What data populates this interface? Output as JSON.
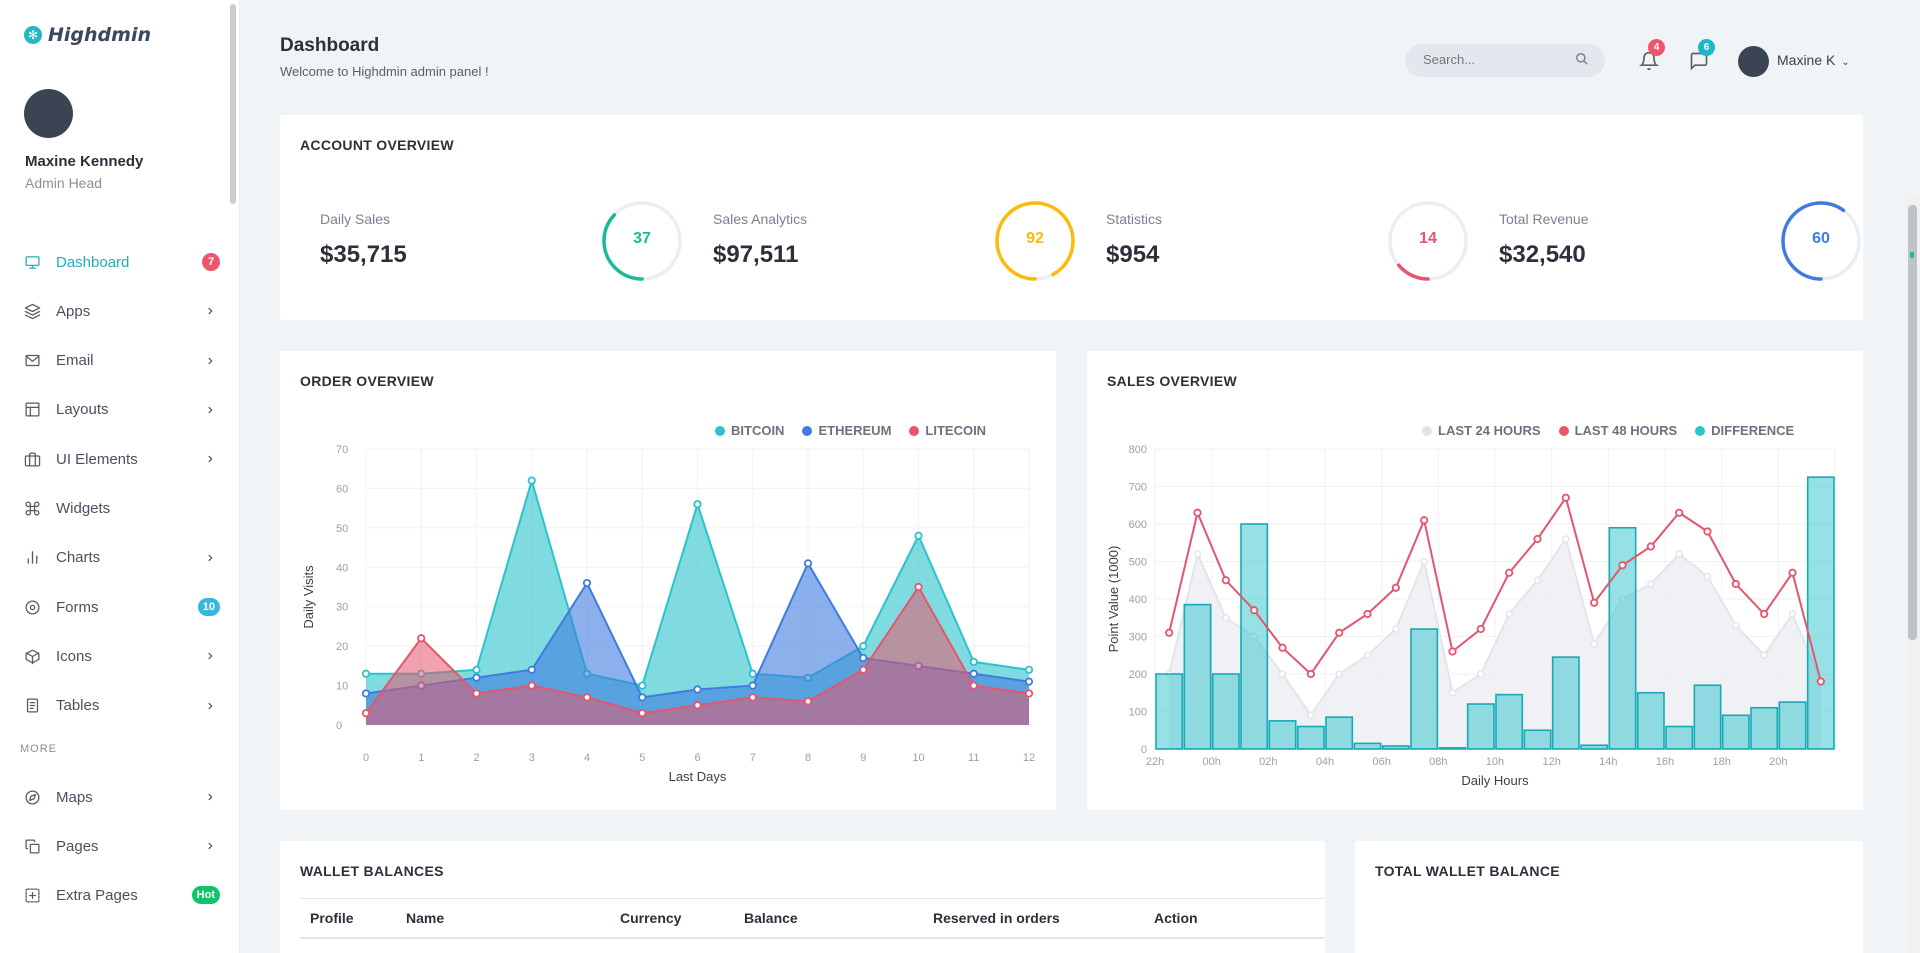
{
  "app": {
    "name": "Highdmin"
  },
  "user": {
    "name": "Maxine Kennedy",
    "role": "Admin Head",
    "short_name": "Maxine K"
  },
  "sidebar": {
    "items": [
      {
        "label": "Dashboard",
        "icon": "monitor-icon",
        "badge": "7",
        "badge_color": "#f1556c",
        "active": true
      },
      {
        "label": "Apps",
        "icon": "layers-icon"
      },
      {
        "label": "Email",
        "icon": "mail-icon"
      },
      {
        "label": "Layouts",
        "icon": "layout-icon"
      },
      {
        "label": "UI Elements",
        "icon": "briefcase-icon"
      },
      {
        "label": "Widgets",
        "icon": "command-icon"
      },
      {
        "label": "Charts",
        "icon": "bar-chart-icon"
      },
      {
        "label": "Forms",
        "icon": "disc-icon",
        "badge": "10",
        "badge_color": "#35b8e0"
      },
      {
        "label": "Icons",
        "icon": "box-icon"
      },
      {
        "label": "Tables",
        "icon": "clipboard-icon"
      }
    ],
    "section_more": "MORE",
    "more_items": [
      {
        "label": "Maps",
        "icon": "compass-icon"
      },
      {
        "label": "Pages",
        "icon": "copy-icon"
      },
      {
        "label": "Extra Pages",
        "icon": "plus-square-icon",
        "badge": "Hot",
        "badge_color": "#10c469"
      }
    ]
  },
  "header": {
    "title": "Dashboard",
    "subtitle": "Welcome to Highdmin admin panel !",
    "search_placeholder": "Search...",
    "notifications_count": "4",
    "messages_count": "6"
  },
  "account_overview": {
    "title": "ACCOUNT OVERVIEW",
    "stats": [
      {
        "label": "Daily Sales",
        "value": "$35,715",
        "ring_value": 37,
        "ring_label": "37",
        "color": "#1bb99a"
      },
      {
        "label": "Sales Analytics",
        "value": "$97,511",
        "ring_value": 92,
        "ring_label": "92",
        "color": "#f9bc0b"
      },
      {
        "label": "Statistics",
        "value": "$954",
        "ring_value": 14,
        "ring_label": "14",
        "color": "#e3566d"
      },
      {
        "label": "Total Revenue",
        "value": "$32,540",
        "ring_value": 60,
        "ring_label": "60",
        "color": "#3d7de0"
      }
    ]
  },
  "chart_data": [
    {
      "type": "area",
      "card_title": "ORDER OVERVIEW",
      "x": [
        0,
        1,
        2,
        3,
        4,
        5,
        6,
        7,
        8,
        9,
        10,
        11,
        12
      ],
      "ylim": [
        0,
        70
      ],
      "yticks": [
        0,
        10,
        20,
        30,
        40,
        50,
        60,
        70
      ],
      "xlabel": "Last Days",
      "ylabel": "Daily Visits",
      "legend_position": "top-right",
      "series": [
        {
          "name": "BITCOIN",
          "color": "#2bc3cb",
          "values": [
            13,
            13,
            14,
            62,
            13,
            10,
            56,
            13,
            12,
            20,
            48,
            16,
            14
          ]
        },
        {
          "name": "ETHEREUM",
          "color": "#3e7ce0",
          "values": [
            8,
            10,
            12,
            14,
            36,
            7,
            9,
            10,
            41,
            17,
            15,
            13,
            11
          ]
        },
        {
          "name": "LITECOIN",
          "color": "#e3566d",
          "values": [
            3,
            22,
            8,
            10,
            7,
            3,
            5,
            7,
            6,
            14,
            35,
            10,
            8
          ]
        }
      ]
    },
    {
      "type": "bar",
      "card_title": "SALES OVERVIEW",
      "categories": [
        "22h",
        "23h",
        "00h",
        "01h",
        "02h",
        "03h",
        "04h",
        "05h",
        "06h",
        "07h",
        "08h",
        "09h",
        "10h",
        "11h",
        "12h",
        "13h",
        "14h",
        "15h",
        "16h",
        "17h",
        "18h",
        "19h",
        "20h",
        "21h"
      ],
      "xtick_labels": [
        "22h",
        "",
        "00h",
        "",
        "02h",
        "",
        "04h",
        "",
        "06h",
        "",
        "08h",
        "",
        "10h",
        "",
        "12h",
        "",
        "14h",
        "",
        "16h",
        "",
        "18h",
        "",
        "20h",
        ""
      ],
      "ylim": [
        0,
        800
      ],
      "yticks": [
        0,
        100,
        200,
        300,
        400,
        500,
        600,
        700,
        800
      ],
      "xlabel": "Daily Hours",
      "ylabel": "Point Value (1000)",
      "legend_position": "top-right",
      "series": [
        {
          "name": "LAST 24 HOURS",
          "type": "area",
          "color": "#e6e9ee",
          "values": [
            200,
            520,
            350,
            300,
            200,
            90,
            200,
            250,
            320,
            500,
            150,
            200,
            360,
            450,
            560,
            280,
            400,
            440,
            520,
            460,
            330,
            250,
            360,
            180
          ]
        },
        {
          "name": "LAST 48 HOURS",
          "type": "line",
          "color": "#e3566d",
          "values": [
            310,
            630,
            450,
            370,
            270,
            200,
            310,
            360,
            430,
            610,
            260,
            320,
            470,
            560,
            670,
            390,
            490,
            540,
            630,
            580,
            440,
            360,
            470,
            180
          ]
        },
        {
          "name": "DIFFERENCE",
          "type": "bar",
          "color": "#2bc3cb",
          "values": [
            200,
            385,
            200,
            600,
            75,
            60,
            85,
            15,
            8,
            320,
            3,
            120,
            145,
            50,
            245,
            10,
            590,
            150,
            60,
            170,
            90,
            110,
            125,
            725
          ]
        }
      ]
    }
  ],
  "wallet": {
    "title": "WALLET BALANCES",
    "columns": [
      "Profile",
      "Name",
      "Currency",
      "Balance",
      "Reserved in orders",
      "Action"
    ]
  },
  "total_wallet": {
    "title": "TOTAL WALLET BALANCE"
  }
}
